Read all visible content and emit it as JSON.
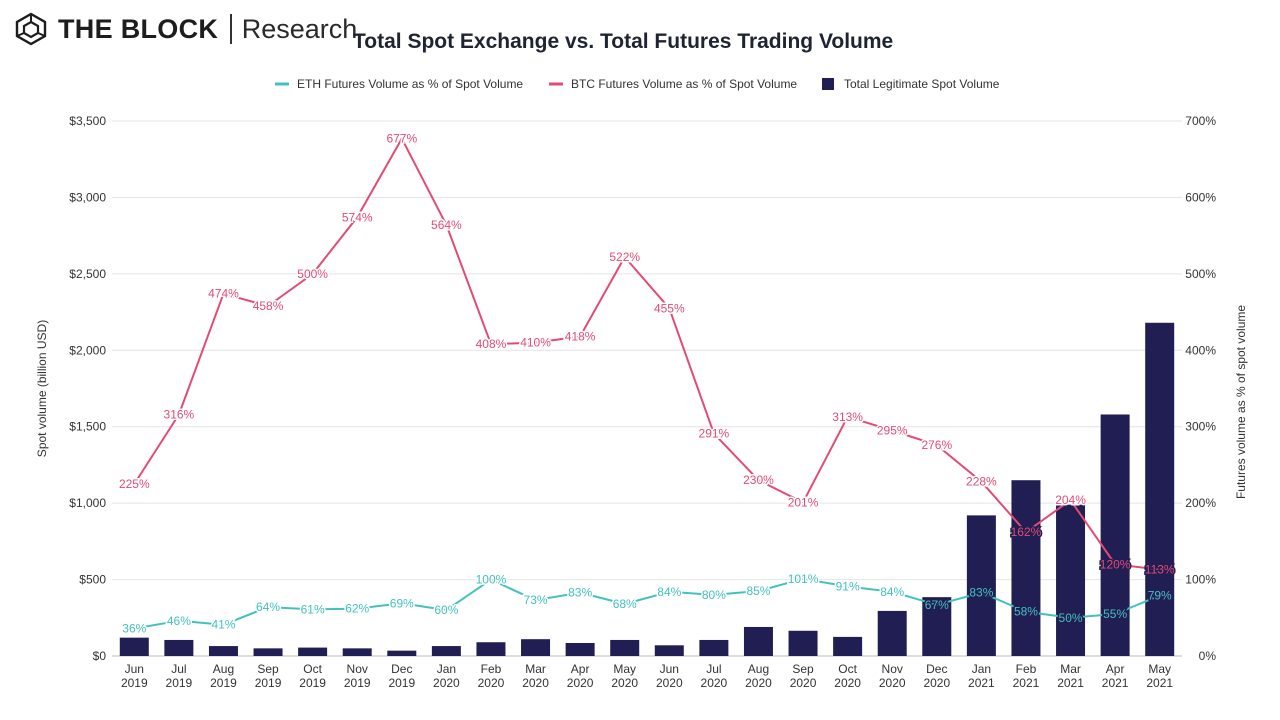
{
  "brand": {
    "name": "THE BLOCK",
    "sub": "Research"
  },
  "colors": {
    "eth": "#43c1bd",
    "btc": "#e34b73",
    "spot": "#211e54",
    "grid": "#e4e4e4"
  },
  "chart_data": {
    "type": "bar",
    "title": "Total Spot Exchange vs. Total Futures Trading Volume",
    "categories": [
      "Jun 2019",
      "Jul 2019",
      "Aug 2019",
      "Sep 2019",
      "Oct 2019",
      "Nov 2019",
      "Dec 2019",
      "Jan 2020",
      "Feb 2020",
      "Mar 2020",
      "Apr 2020",
      "May 2020",
      "Jun 2020",
      "Jul 2020",
      "Aug 2020",
      "Sep 2020",
      "Oct 2020",
      "Nov 2020",
      "Dec 2020",
      "Jan 2021",
      "Feb 2021",
      "Mar 2021",
      "Apr 2021",
      "May 2021"
    ],
    "category_lines": [
      [
        "Jun",
        "2019"
      ],
      [
        "Jul",
        "2019"
      ],
      [
        "Aug",
        "2019"
      ],
      [
        "Sep",
        "2019"
      ],
      [
        "Oct",
        "2019"
      ],
      [
        "Nov",
        "2019"
      ],
      [
        "Dec",
        "2019"
      ],
      [
        "Jan",
        "2020"
      ],
      [
        "Feb",
        "2020"
      ],
      [
        "Mar",
        "2020"
      ],
      [
        "Apr",
        "2020"
      ],
      [
        "May",
        "2020"
      ],
      [
        "Jun",
        "2020"
      ],
      [
        "Jul",
        "2020"
      ],
      [
        "Aug",
        "2020"
      ],
      [
        "Sep",
        "2020"
      ],
      [
        "Oct",
        "2020"
      ],
      [
        "Nov",
        "2020"
      ],
      [
        "Dec",
        "2020"
      ],
      [
        "Jan",
        "2021"
      ],
      [
        "Feb",
        "2021"
      ],
      [
        "Mar",
        "2021"
      ],
      [
        "Apr",
        "2021"
      ],
      [
        "May",
        "2021"
      ]
    ],
    "ylabel": "Spot volume (billion USD)",
    "ylabel_right": "Futures volume as % of spot volume",
    "ylim": [
      0,
      3500
    ],
    "ylim_right": [
      0,
      700
    ],
    "y_ticks": [
      "$0",
      "$500",
      "$1,000",
      "$1,500",
      "$2,000",
      "$2,500",
      "$3,000",
      "$3,500"
    ],
    "y_right_ticks": [
      "0%",
      "100%",
      "200%",
      "300%",
      "400%",
      "500%",
      "600%",
      "700%"
    ],
    "grid": true,
    "legend_position": "top-center",
    "series": [
      {
        "name": "ETH Futures Volume as % of Spot Volume",
        "kind": "line",
        "axis": "right",
        "values": [
          36,
          46,
          41,
          64,
          61,
          62,
          69,
          60,
          100,
          73,
          83,
          68,
          84,
          80,
          85,
          101,
          91,
          84,
          67,
          83,
          58,
          50,
          55,
          79
        ],
        "labels": [
          "36%",
          "46%",
          "41%",
          "64%",
          "61%",
          "62%",
          "69%",
          "60%",
          "100%",
          "73%",
          "83%",
          "68%",
          "84%",
          "80%",
          "85%",
          "101%",
          "91%",
          "84%",
          "67%",
          "83%",
          "58%",
          "50%",
          "55%",
          "79%"
        ]
      },
      {
        "name": "BTC Futures Volume as % of Spot Volume",
        "kind": "line",
        "axis": "right",
        "values": [
          225,
          316,
          474,
          458,
          500,
          574,
          677,
          564,
          408,
          410,
          418,
          522,
          455,
          291,
          230,
          201,
          313,
          295,
          276,
          228,
          162,
          204,
          120,
          113
        ],
        "labels": [
          "225%",
          "316%",
          "474%",
          "458%",
          "500%",
          "574%",
          "677%",
          "564%",
          "408%",
          "410%",
          "418%",
          "522%",
          "455%",
          "291%",
          "230%",
          "201%",
          "313%",
          "295%",
          "276%",
          "228%",
          "162%",
          "204%",
          "120%",
          "113%"
        ]
      },
      {
        "name": "Total Legitimate Spot Volume",
        "kind": "bar",
        "axis": "left",
        "values": [
          120,
          105,
          65,
          50,
          55,
          50,
          35,
          65,
          90,
          110,
          85,
          105,
          70,
          105,
          190,
          165,
          125,
          295,
          385,
          920,
          1150,
          990,
          1580,
          2180
        ]
      }
    ]
  }
}
